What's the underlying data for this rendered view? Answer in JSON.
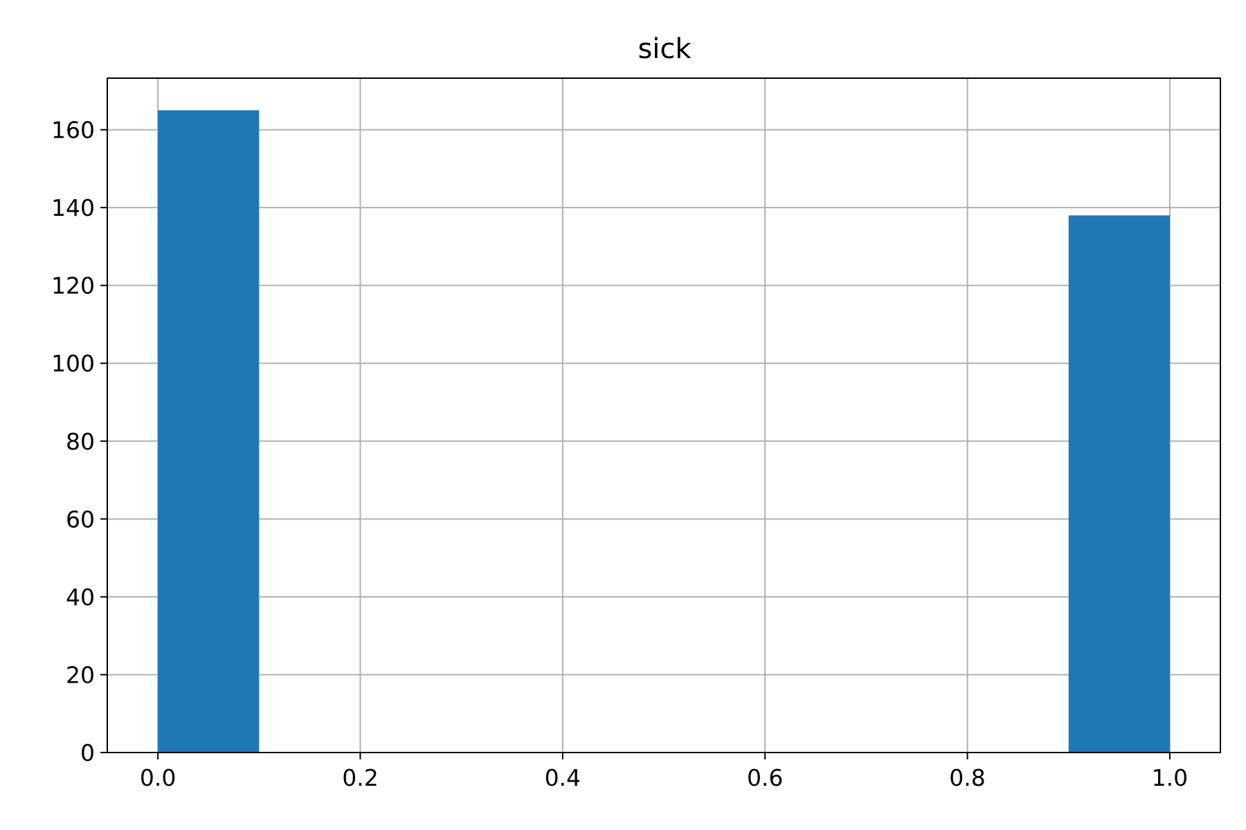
{
  "chart_data": {
    "type": "bar",
    "title": "sick",
    "xlabel": "",
    "ylabel": "",
    "bins": [
      {
        "x0": 0.0,
        "x1": 0.1,
        "count": 165
      },
      {
        "x0": 0.1,
        "x1": 0.2,
        "count": 0
      },
      {
        "x0": 0.2,
        "x1": 0.3,
        "count": 0
      },
      {
        "x0": 0.3,
        "x1": 0.4,
        "count": 0
      },
      {
        "x0": 0.4,
        "x1": 0.5,
        "count": 0
      },
      {
        "x0": 0.5,
        "x1": 0.6,
        "count": 0
      },
      {
        "x0": 0.6,
        "x1": 0.7,
        "count": 0
      },
      {
        "x0": 0.7,
        "x1": 0.8,
        "count": 0
      },
      {
        "x0": 0.8,
        "x1": 0.9,
        "count": 0
      },
      {
        "x0": 0.9,
        "x1": 1.0,
        "count": 138
      }
    ],
    "xlim": [
      -0.05,
      1.05
    ],
    "ylim": [
      0,
      173.25
    ],
    "xticks": [
      "0.0",
      "0.2",
      "0.4",
      "0.6",
      "0.8",
      "1.0"
    ],
    "yticks": [
      "0",
      "20",
      "40",
      "60",
      "80",
      "100",
      "120",
      "140",
      "160"
    ],
    "grid": true,
    "bar_color": "#1f77b4"
  }
}
